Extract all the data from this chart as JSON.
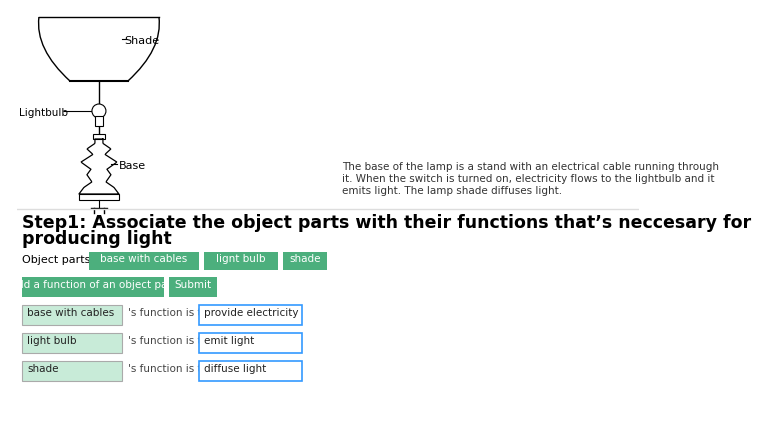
{
  "bg_color": "#ffffff",
  "title_text": "Step1: Associate the object parts with their functions that’s neccesary for\nproducing light",
  "title_fontsize": 13,
  "description_text": "The base of the lamp is a stand with an electrical cable running through\nit. When the switch is turned on, electricity flows to the lightbulb and it\nemits light. The lamp shade diffuses light.",
  "description_fontsize": 7.5,
  "object_parts_label": "Object parts:",
  "object_parts_tags": [
    "base with cables",
    "lignt bulb",
    "shade"
  ],
  "tag_bg_color": "#4caf7d",
  "tag_text_color": "#ffffff",
  "button1_text": "Add a function of an object part",
  "button2_text": "Submit",
  "button_bg_color": "#4caf7d",
  "button_text_color": "#ffffff",
  "rows": [
    {
      "part": "base with cables",
      "function": "provide electricity"
    },
    {
      "part": "light bulb",
      "function": "emit light"
    },
    {
      "part": "shade",
      "function": "diffuse light"
    }
  ],
  "row_part_bg": "#c8ebd8",
  "row_part_border": "#aaaaaa",
  "row_func_border": "#3399ff",
  "connector_text": "'s function is to",
  "lamp_label_shade": "Shade",
  "lamp_label_lightbulb": "Lightbulb",
  "lamp_label_base": "Base"
}
